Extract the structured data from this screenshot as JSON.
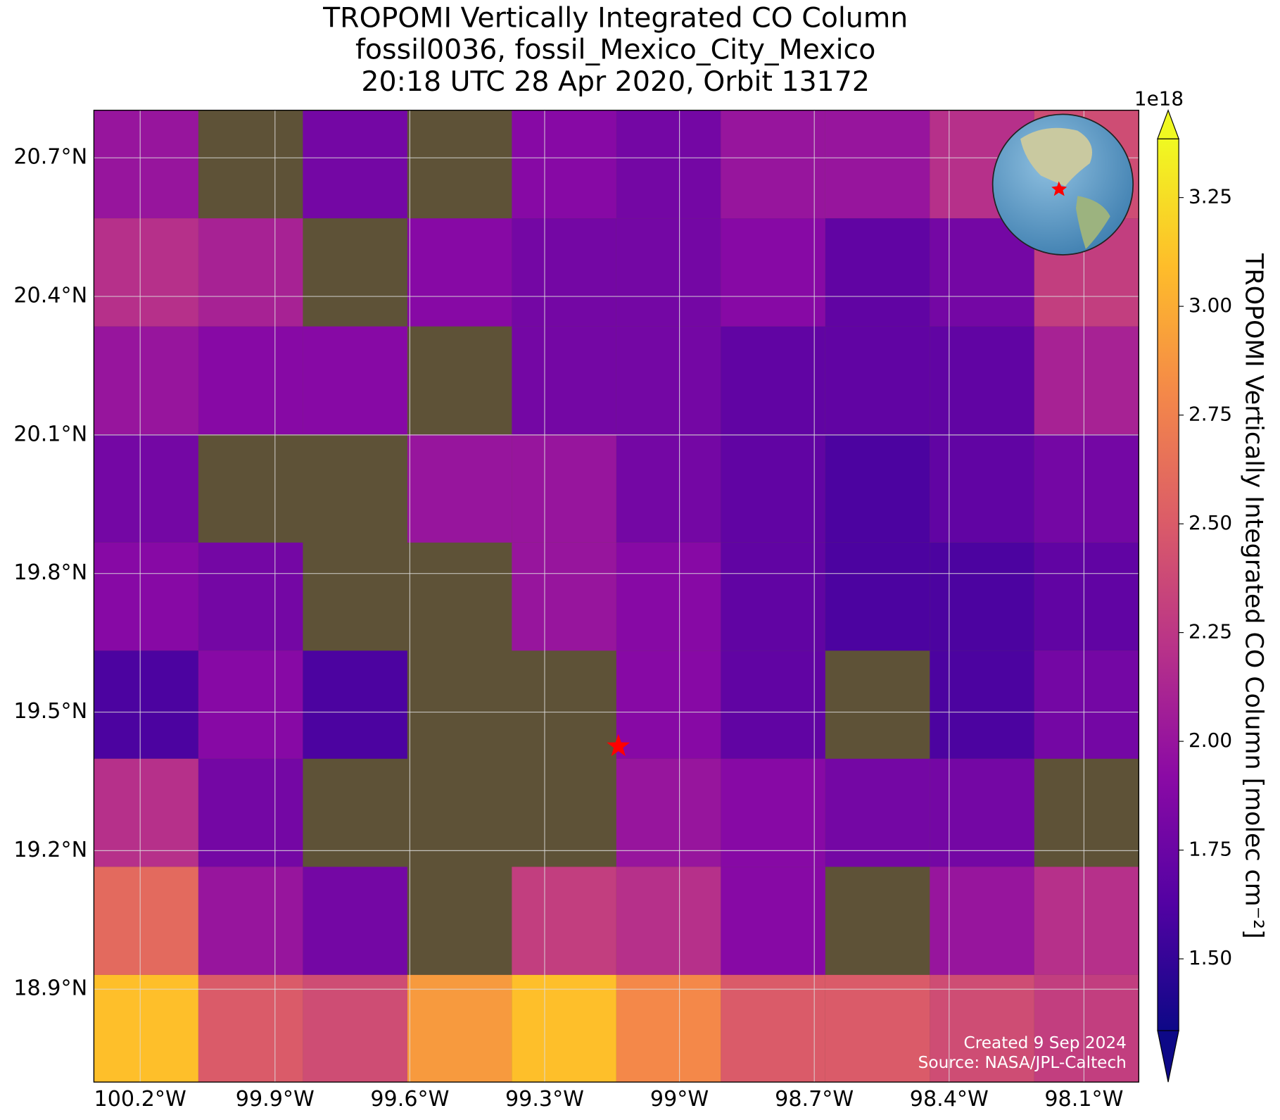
{
  "chart_data": {
    "type": "map",
    "title": [
      "TROPOMI Vertically Integrated CO Column",
      "fossil0036, fossil_Mexico_City_Mexico",
      "20:18 UTC 28 Apr 2020, Orbit 13172"
    ],
    "xlim": [
      -100.303,
      -97.978
    ],
    "ylim": [
      18.699,
      20.803
    ],
    "xticks": [
      {
        "value": -100.2,
        "label": "100.2°W"
      },
      {
        "value": -99.9,
        "label": "99.9°W"
      },
      {
        "value": -99.6,
        "label": "99.6°W"
      },
      {
        "value": -99.3,
        "label": "99.3°W"
      },
      {
        "value": -99.0,
        "label": "99°W"
      },
      {
        "value": -98.7,
        "label": "98.7°W"
      },
      {
        "value": -98.4,
        "label": "98.4°W"
      },
      {
        "value": -98.1,
        "label": "98.1°W"
      }
    ],
    "yticks": [
      {
        "value": 20.7,
        "label": "20.7°N"
      },
      {
        "value": 20.4,
        "label": "20.4°N"
      },
      {
        "value": 20.1,
        "label": "20.1°N"
      },
      {
        "value": 19.8,
        "label": "19.8°N"
      },
      {
        "value": 19.5,
        "label": "19.5°N"
      },
      {
        "value": 19.2,
        "label": "19.2°N"
      },
      {
        "value": 18.9,
        "label": "18.9°N"
      }
    ],
    "grid": true,
    "cells": {
      "lon_edges": [
        -100.303,
        -100.0705,
        -99.838,
        -99.6055,
        -99.373,
        -99.1405,
        -98.908,
        -98.6755,
        -98.443,
        -98.2105,
        -97.978
      ],
      "lat_edges": [
        20.803,
        20.569,
        20.335,
        20.101,
        19.867,
        19.633,
        19.399,
        19.165,
        18.931,
        18.699
      ],
      "values": [
        [
          2.0,
          null,
          1.8,
          null,
          1.9,
          1.8,
          2.0,
          2.0,
          2.2,
          2.4
        ],
        [
          2.2,
          2.1,
          null,
          1.9,
          1.8,
          1.8,
          1.9,
          1.7,
          1.8,
          2.3
        ],
        [
          2.0,
          1.9,
          1.9,
          null,
          1.8,
          1.8,
          1.7,
          1.7,
          1.7,
          2.1
        ],
        [
          1.8,
          null,
          null,
          2.0,
          2.0,
          1.8,
          1.7,
          1.6,
          1.7,
          1.8
        ],
        [
          1.9,
          1.8,
          null,
          null,
          2.0,
          1.9,
          1.7,
          1.6,
          1.6,
          1.7
        ],
        [
          1.6,
          1.9,
          1.6,
          null,
          null,
          1.9,
          1.7,
          null,
          1.6,
          1.8
        ],
        [
          2.2,
          1.8,
          null,
          null,
          null,
          2.0,
          1.9,
          1.8,
          1.8,
          null
        ],
        [
          2.6,
          2.0,
          1.8,
          null,
          2.3,
          2.2,
          1.9,
          null,
          2.0,
          2.2
        ],
        [
          3.1,
          2.5,
          2.4,
          2.9,
          3.1,
          2.8,
          2.5,
          2.5,
          2.4,
          2.3
        ]
      ]
    },
    "site": {
      "lon": -99.136,
      "lat": 19.426,
      "color": "#ff0000"
    },
    "colormap": [
      "#0d0887",
      "#5302a3",
      "#8b0aa5",
      "#b83289",
      "#db5c68",
      "#f48849",
      "#febd2a",
      "#f0f921"
    ],
    "clim": [
      1.335,
      3.385
    ],
    "cticks": [
      {
        "value": 1.5,
        "label": "1.50"
      },
      {
        "value": 1.75,
        "label": "1.75"
      },
      {
        "value": 2.0,
        "label": "2.00"
      },
      {
        "value": 2.25,
        "label": "2.25"
      },
      {
        "value": 2.5,
        "label": "2.50"
      },
      {
        "value": 2.75,
        "label": "2.75"
      },
      {
        "value": 3.0,
        "label": "3.00"
      },
      {
        "value": 3.25,
        "label": "3.25"
      }
    ],
    "colorbar_label": "TROPOMI Vertically Integrated CO Column [molec cm⁻²]",
    "colorbar_exponent": "1e18",
    "footer": [
      "Created 9 Sep 2024",
      "Source: NASA/JPL-Caltech"
    ]
  }
}
